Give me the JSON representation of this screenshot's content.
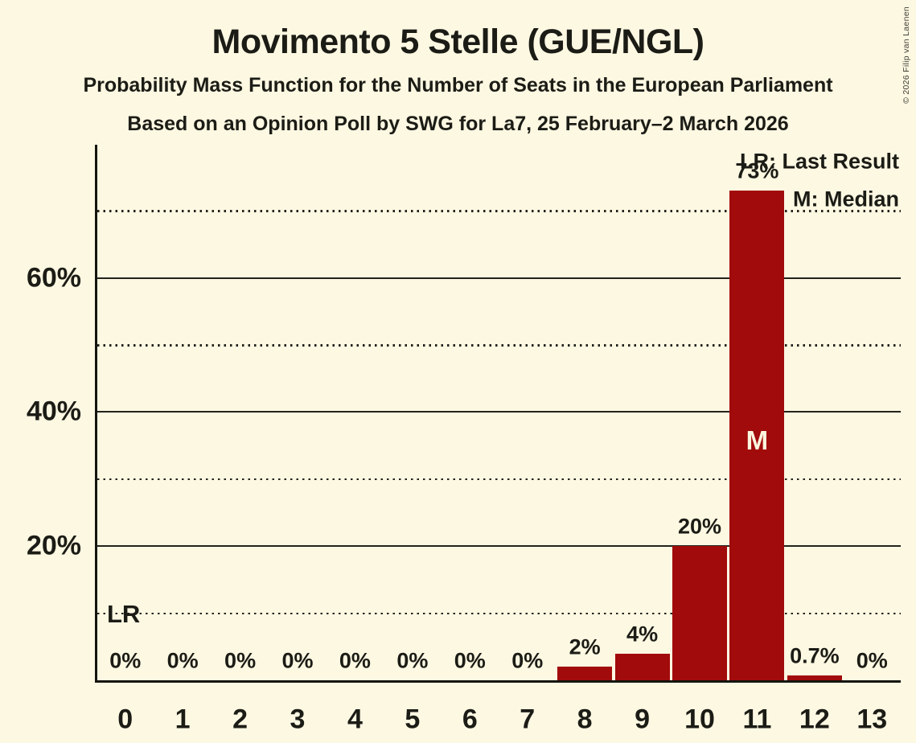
{
  "title": "Movimento 5 Stelle (GUE/NGL)",
  "subtitle1": "Probability Mass Function for the Number of Seats in the European Parliament",
  "subtitle2": "Based on an Opinion Poll by SWG for La7, 25 February–2 March 2026",
  "copyright": "© 2026 Filip van Laenen",
  "legend": {
    "lr": "LR: Last Result",
    "m": "M: Median"
  },
  "annotations": {
    "last_result_label": "LR",
    "median_label": "M"
  },
  "colors": {
    "background": "#FDF8E2",
    "bar": "#A10B0B",
    "text": "#1C1C16",
    "axis": "#15150F",
    "median_text": "#FBF5DF"
  },
  "chart_data": {
    "type": "bar",
    "title": "Movimento 5 Stelle (GUE/NGL)",
    "categories": [
      "0",
      "1",
      "2",
      "3",
      "4",
      "5",
      "6",
      "7",
      "8",
      "9",
      "10",
      "11",
      "12",
      "13"
    ],
    "values": [
      0,
      0,
      0,
      0,
      0,
      0,
      0,
      0,
      2,
      4,
      20,
      73,
      0.7,
      0
    ],
    "bar_labels": [
      "0%",
      "0%",
      "0%",
      "0%",
      "0%",
      "0%",
      "0%",
      "0%",
      "2%",
      "4%",
      "20%",
      "73%",
      "0.7%",
      "0%"
    ],
    "ylim": [
      0,
      80
    ],
    "y_ticks": [
      {
        "value": 20,
        "label": "20%"
      },
      {
        "value": 40,
        "label": "40%"
      },
      {
        "value": 60,
        "label": "60%"
      }
    ],
    "gridlines": {
      "solid_at": [
        20,
        40,
        60
      ],
      "dotted_at": [
        10,
        30,
        50,
        70
      ]
    },
    "grid": true,
    "legend_position": "top-right",
    "median_seat": "11",
    "last_result_line_y": 10
  }
}
